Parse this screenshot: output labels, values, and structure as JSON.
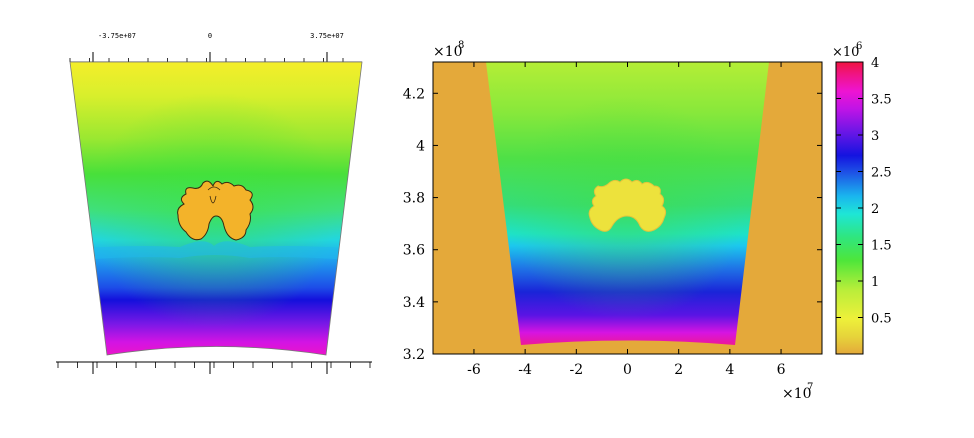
{
  "chart_data": [
    {
      "type": "heatmap",
      "panel": "left",
      "title": "",
      "xlabel": "",
      "ylabel": "",
      "x_tick_labels": [
        "-3.75e+07",
        "0",
        "3.75e+07"
      ],
      "x_ticks": [
        -37500000,
        0,
        37500000
      ],
      "grid": false,
      "legend": "none"
    },
    {
      "type": "heatmap",
      "panel": "right",
      "title": "",
      "xlabel": "",
      "ylabel": "",
      "x_multiplier": "×10",
      "x_multiplier_exp": "7",
      "y_multiplier": "×10",
      "y_multiplier_exp": "8",
      "x_ticks": [
        -6,
        -4,
        -2,
        0,
        2,
        4,
        6
      ],
      "x_tick_labels": [
        "-6",
        "-4",
        "-2",
        "0",
        "2",
        "4",
        "6"
      ],
      "xlim": [
        -7.6,
        7.6
      ],
      "y_ticks": [
        3.2,
        3.4,
        3.6,
        3.8,
        4.0,
        4.2
      ],
      "y_tick_labels": [
        "3.2",
        "3.4",
        "3.6",
        "3.8",
        "4",
        "4.2"
      ],
      "ylim": [
        3.2,
        4.32
      ],
      "colorbar": {
        "multiplier": "×10",
        "multiplier_exp": "6",
        "ticks": [
          0.5,
          1,
          1.5,
          2,
          2.5,
          3,
          3.5,
          4
        ],
        "tick_labels": [
          "0.5",
          "1",
          "1.5",
          "2",
          "2.5",
          "3",
          "3.5",
          "4"
        ],
        "range": [
          0,
          4
        ],
        "placement": "right"
      },
      "grid": false
    }
  ],
  "colors": {
    "background_fill": "#e4a93a",
    "colormap": [
      "#e4a93a",
      "#eef03a",
      "#c8f03a",
      "#33e833",
      "#1ee6aa",
      "#19e6f0",
      "#1e5ae6",
      "#1414e0",
      "#a814e8",
      "#f014d2",
      "#f01440"
    ]
  }
}
